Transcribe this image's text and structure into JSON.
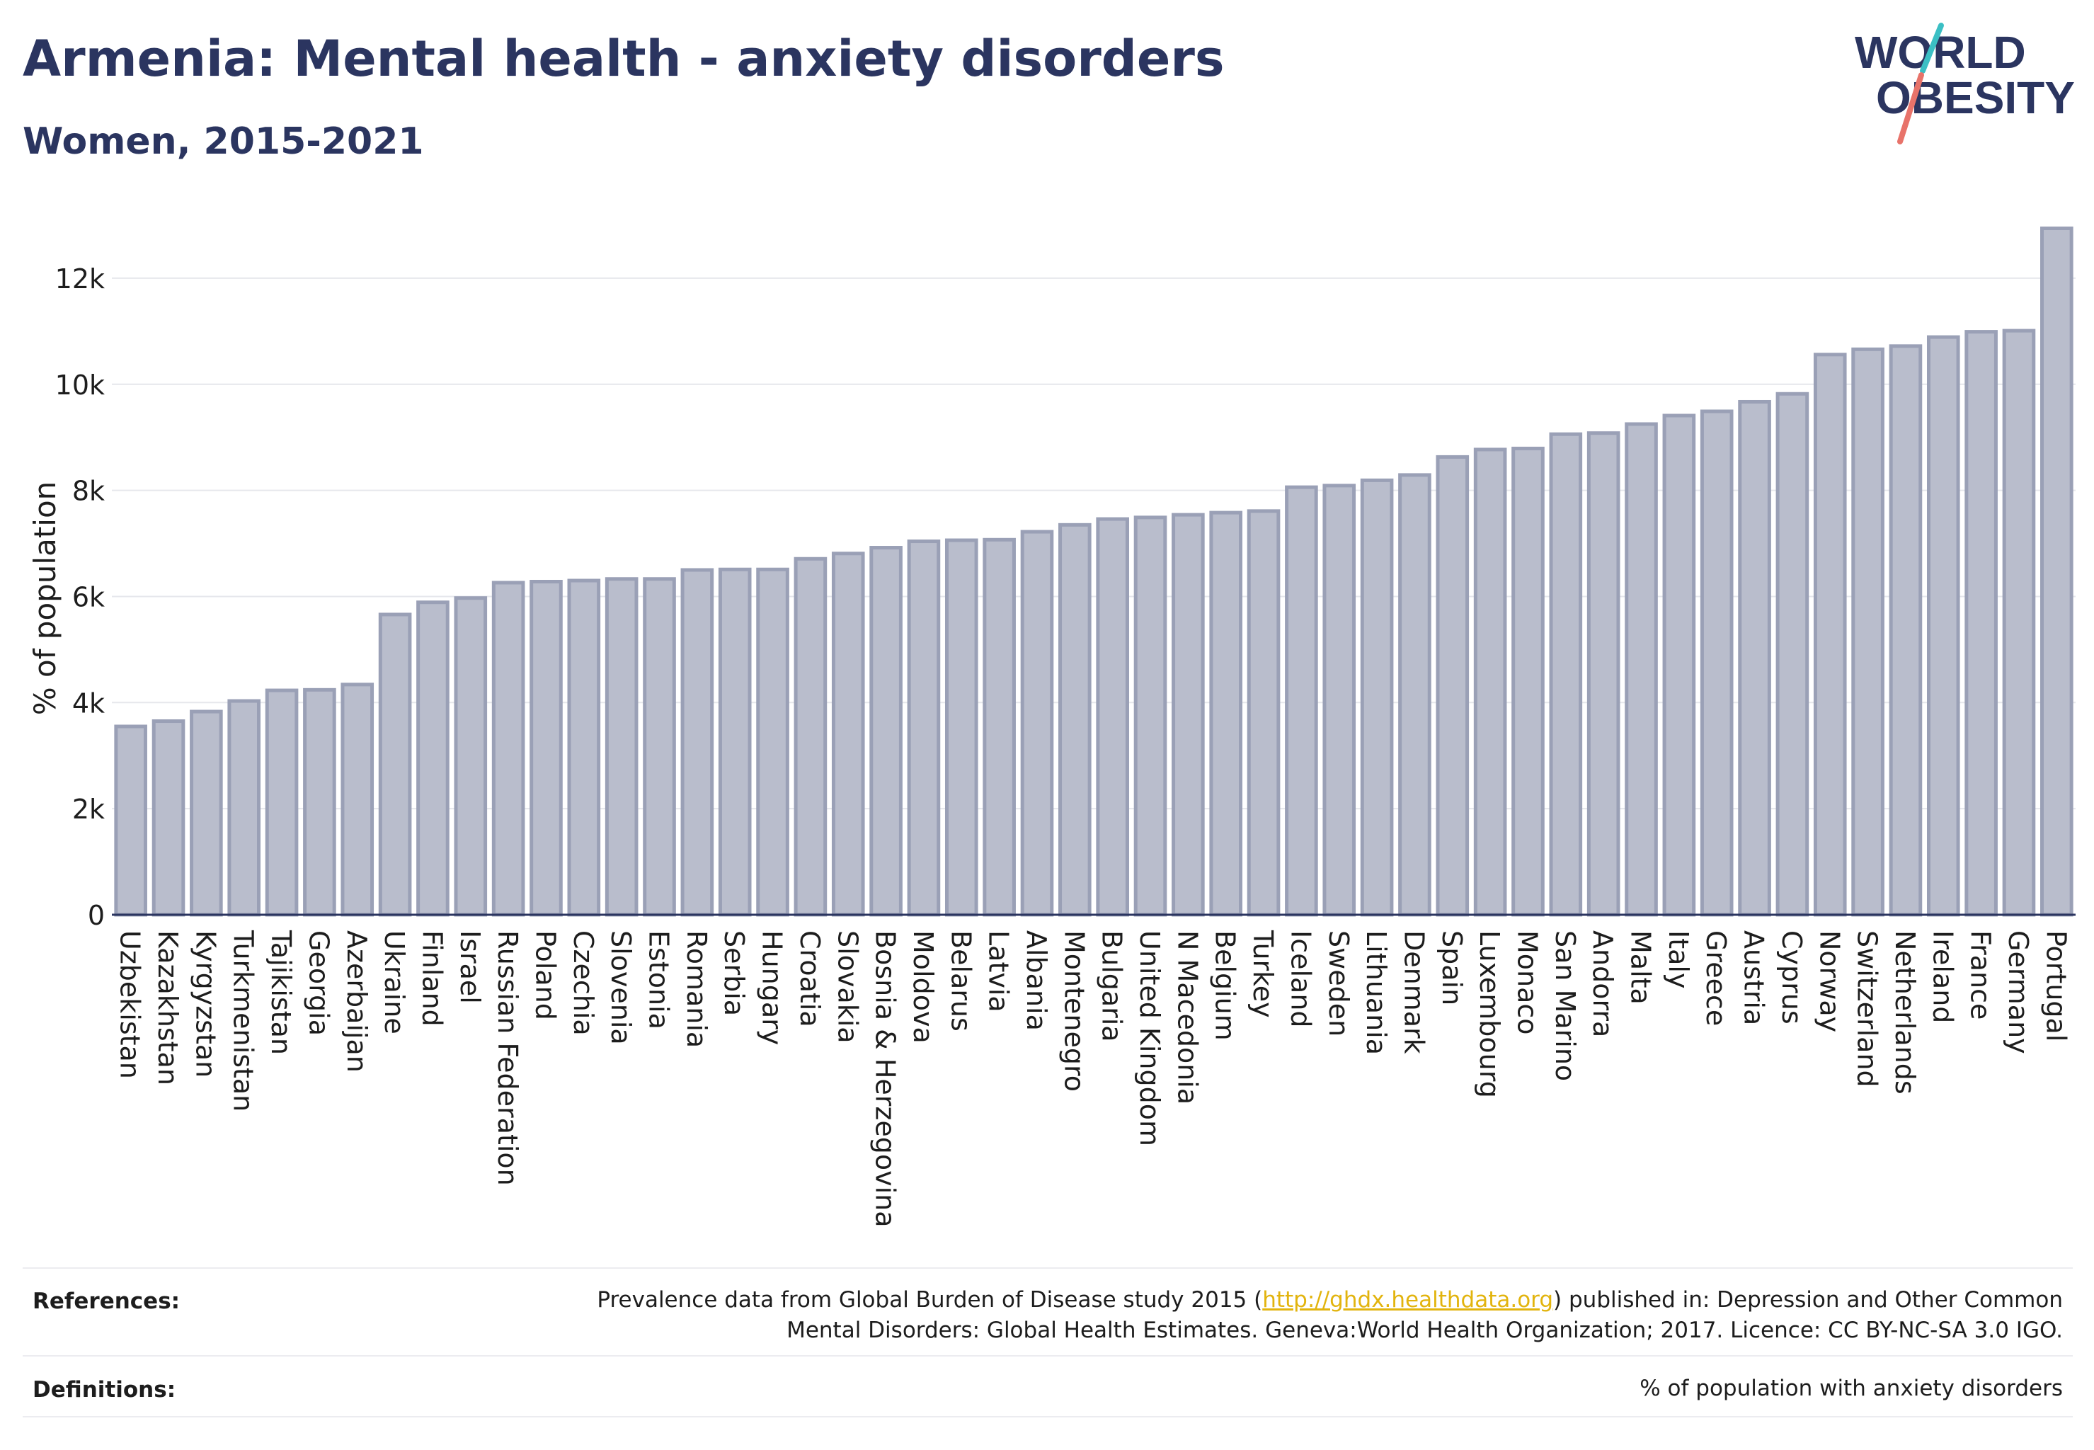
{
  "header": {
    "title": "Armenia: Mental health - anxiety disorders",
    "subtitle": "Women, 2015-2021"
  },
  "logo": {
    "line1": "WORLD",
    "line2": "OBESITY"
  },
  "chart_data": {
    "type": "bar",
    "ylabel": "% of population",
    "ylim": [
      0,
      13000
    ],
    "yticks": [
      0,
      2000,
      4000,
      6000,
      8000,
      10000,
      12000
    ],
    "ytick_labels": [
      "0",
      "2k",
      "4k",
      "6k",
      "8k",
      "10k",
      "12k"
    ],
    "grid": true,
    "bar_color": "#b9bdcc",
    "bar_edge_color": "#9aa0b6",
    "categories": [
      "Uzbekistan",
      "Kazakhstan",
      "Kyrgyzstan",
      "Turkmenistan",
      "Tajikistan",
      "Georgia",
      "Azerbaijan",
      "Ukraine",
      "Finland",
      "Israel",
      "Russian Federation",
      "Poland",
      "Czechia",
      "Slovenia",
      "Estonia",
      "Romania",
      "Serbia",
      "Hungary",
      "Croatia",
      "Slovakia",
      "Bosnia & Herzegovina",
      "Moldova",
      "Belarus",
      "Latvia",
      "Albania",
      "Montenegro",
      "Bulgaria",
      "United Kingdom",
      "N Macedonia",
      "Belgium",
      "Turkey",
      "Iceland",
      "Sweden",
      "Lithuania",
      "Denmark",
      "Spain",
      "Luxembourg",
      "Monaco",
      "San Marino",
      "Andorra",
      "Malta",
      "Italy",
      "Greece",
      "Austria",
      "Cyprus",
      "Norway",
      "Switzerland",
      "Netherlands",
      "Ireland",
      "France",
      "Germany",
      "Portugal"
    ],
    "values": [
      3550,
      3650,
      3830,
      4030,
      4230,
      4240,
      4340,
      5660,
      5890,
      5970,
      6260,
      6280,
      6300,
      6330,
      6330,
      6500,
      6510,
      6510,
      6710,
      6810,
      6920,
      7040,
      7060,
      7070,
      7220,
      7350,
      7460,
      7490,
      7540,
      7580,
      7610,
      8060,
      8090,
      8190,
      8290,
      8630,
      8770,
      8790,
      9060,
      9080,
      9250,
      9410,
      9490,
      9670,
      9820,
      10560,
      10660,
      10720,
      10890,
      10990,
      11010,
      12940
    ]
  },
  "references": {
    "label": "References:",
    "text_before": "Prevalence data from Global Burden of Disease study 2015 (",
    "link": "http://ghdx.healthdata.org",
    "text_after": ") published in: Depression and Other Common",
    "line2": "Mental Disorders: Global Health Estimates. Geneva:World Health Organization; 2017. Licence: CC BY-NC-SA 3.0 IGO."
  },
  "definitions": {
    "label": "Definitions:",
    "text": "% of population with anxiety disorders"
  }
}
